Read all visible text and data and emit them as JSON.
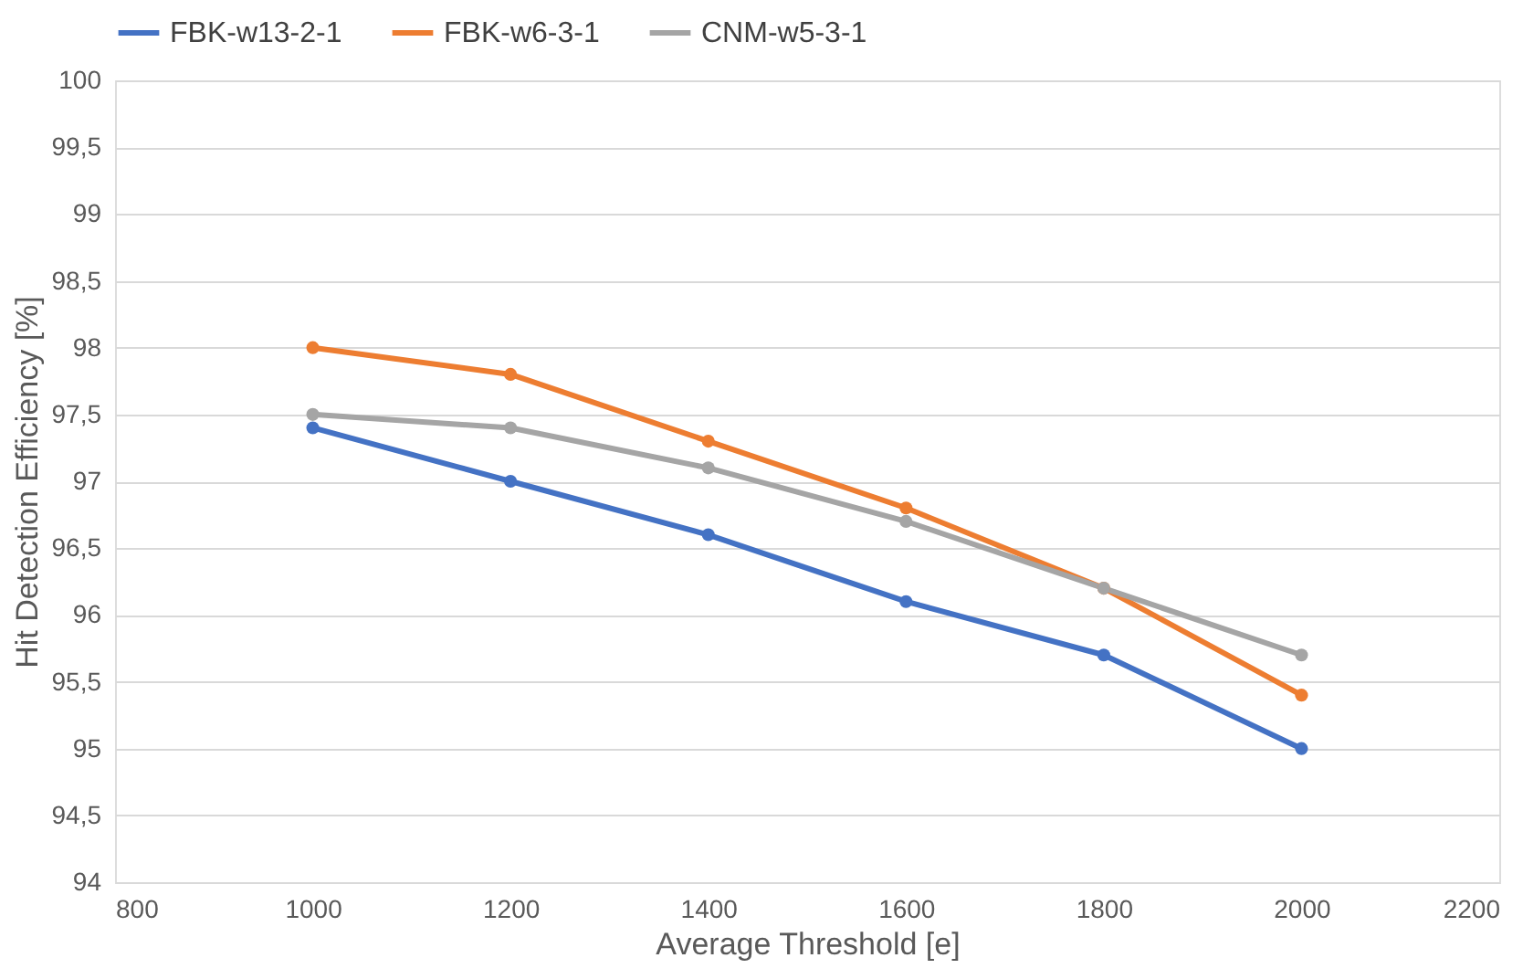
{
  "chart_data": {
    "type": "line",
    "xlabel": "Average Threshold [e]",
    "ylabel": "Hit Detection Efficiency [%]",
    "x": [
      1000,
      1200,
      1400,
      1600,
      1800,
      2000
    ],
    "series": [
      {
        "name": "FBK-w13-2-1",
        "color": "#4472c4",
        "values": [
          97.4,
          97.0,
          96.6,
          96.1,
          95.7,
          95.0
        ]
      },
      {
        "name": "FBK-w6-3-1",
        "color": "#ed7d31",
        "values": [
          98.0,
          97.8,
          97.3,
          96.8,
          96.2,
          95.4
        ]
      },
      {
        "name": "CNM-w5-3-1",
        "color": "#a5a5a5",
        "values": [
          97.5,
          97.4,
          97.1,
          96.7,
          96.2,
          95.7
        ]
      }
    ],
    "xlim": [
      800,
      2200
    ],
    "xticks": [
      800,
      1000,
      1200,
      1400,
      1600,
      1800,
      2000,
      2200
    ],
    "ylim": [
      94,
      100
    ],
    "yticks": [
      94,
      {
        "value": 94.5,
        "label": "94,5"
      },
      95,
      {
        "value": 95.5,
        "label": "95,5"
      },
      96,
      {
        "value": 96.5,
        "label": "96,5"
      },
      97,
      {
        "value": 97.5,
        "label": "97,5"
      },
      98,
      {
        "value": 98.5,
        "label": "98,5"
      },
      99,
      {
        "value": 99.5,
        "label": "99,5"
      },
      100
    ],
    "grid": "y",
    "legend": "top",
    "marker": "circle",
    "line_style": "solid"
  }
}
